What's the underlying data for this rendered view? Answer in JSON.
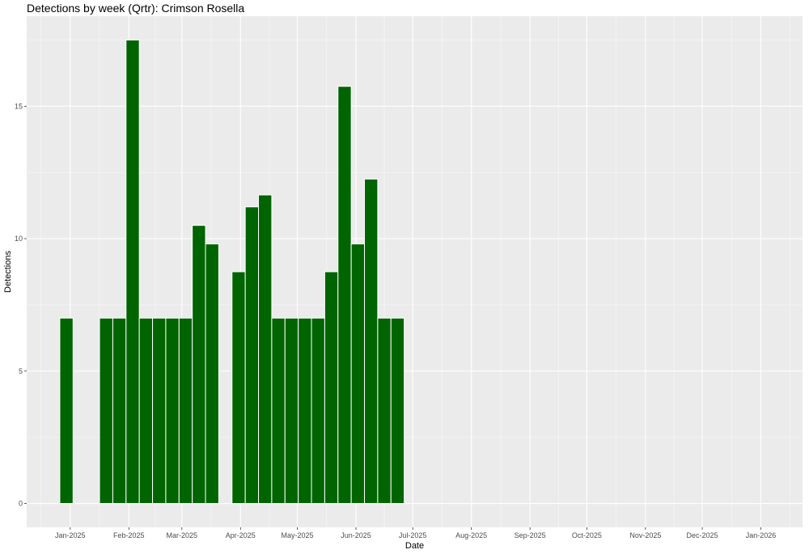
{
  "chart_data": {
    "type": "bar",
    "title": "Detections by week (Qrtr): Crimson Rosella",
    "xlabel": "Date",
    "ylabel": "Detections",
    "x_ticks": [
      "Jan-2025",
      "Feb-2025",
      "Mar-2025",
      "Apr-2025",
      "May-2025",
      "Jun-2025",
      "Jul-2025",
      "Aug-2025",
      "Sep-2025",
      "Oct-2025",
      "Nov-2025",
      "Dec-2025",
      "Jan-2026"
    ],
    "y_ticks": [
      0,
      5,
      10,
      15
    ],
    "xlim": [
      "2024-12-09",
      "2026-01-23"
    ],
    "ylim": [
      -0.9,
      18.4
    ],
    "grid": true,
    "legend": "none",
    "bar_color": "#006400",
    "panel_color": "#ebebeb",
    "weeks": [
      "2024-12-30",
      "2025-01-20",
      "2025-01-27",
      "2025-02-03",
      "2025-02-10",
      "2025-02-17",
      "2025-02-24",
      "2025-03-03",
      "2025-03-10",
      "2025-03-17",
      "2025-03-31",
      "2025-04-07",
      "2025-04-14",
      "2025-04-21",
      "2025-04-28",
      "2025-05-05",
      "2025-05-12",
      "2025-05-19",
      "2025-05-26",
      "2025-06-02",
      "2025-06-09",
      "2025-06-16",
      "2025-06-23"
    ],
    "values": [
      7,
      7,
      7,
      17.5,
      7,
      7,
      7,
      7,
      10.5,
      9.8,
      8.75,
      11.2,
      11.65,
      7,
      7,
      7,
      7,
      8.75,
      15.75,
      9.8,
      12.25,
      7,
      7
    ]
  }
}
